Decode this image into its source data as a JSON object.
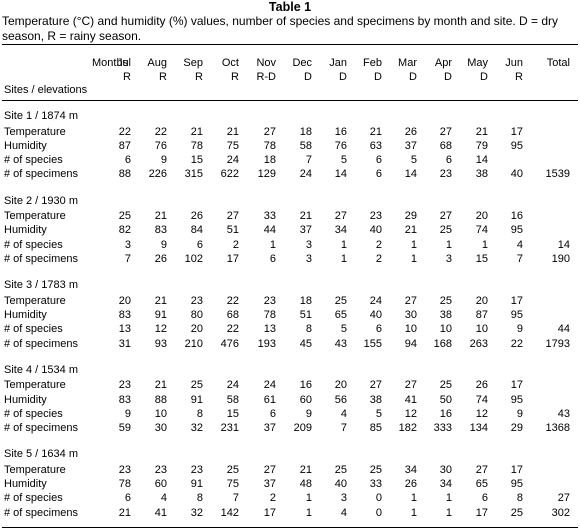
{
  "title": "Table 1",
  "caption": "Temperature (°C) and humidity (%) values, number of species and specimens by month and site. D = dry season, R = rainy season.",
  "header": {
    "months_label": "Months",
    "sites_label": "Sites  /  elevations",
    "columns": [
      {
        "month": "Jul",
        "season": "R"
      },
      {
        "month": "Aug",
        "season": "R"
      },
      {
        "month": "Sep",
        "season": "R"
      },
      {
        "month": "Oct",
        "season": "R"
      },
      {
        "month": "Nov",
        "season": "R-D"
      },
      {
        "month": "Dec",
        "season": "D"
      },
      {
        "month": "Jan",
        "season": "D"
      },
      {
        "month": "Feb",
        "season": "D"
      },
      {
        "month": "Mar",
        "season": "D"
      },
      {
        "month": "Apr",
        "season": "D"
      },
      {
        "month": "May",
        "season": "D"
      },
      {
        "month": "Jun",
        "season": "R"
      },
      {
        "month": "Total",
        "season": ""
      }
    ]
  },
  "sites": [
    {
      "name": "Site 1 / 1874 m",
      "rows": [
        {
          "label": "Temperature",
          "values": [
            "22",
            "22",
            "21",
            "21",
            "27",
            "18",
            "16",
            "21",
            "26",
            "27",
            "21",
            "17",
            ""
          ]
        },
        {
          "label": "Humidity",
          "values": [
            "87",
            "76",
            "78",
            "75",
            "78",
            "58",
            "76",
            "63",
            "37",
            "68",
            "79",
            "95",
            ""
          ]
        },
        {
          "label": "# of species",
          "values": [
            "6",
            "9",
            "15",
            "24",
            "18",
            "7",
            "5",
            "6",
            "5",
            "6",
            "14",
            "",
            ""
          ]
        },
        {
          "label": "# of specimens",
          "values": [
            "88",
            "226",
            "315",
            "622",
            "129",
            "24",
            "14",
            "6",
            "14",
            "23",
            "38",
            "40",
            "1539"
          ]
        }
      ]
    },
    {
      "name": "Site 2 / 1930 m",
      "rows": [
        {
          "label": "Temperature",
          "values": [
            "25",
            "21",
            "26",
            "27",
            "33",
            "21",
            "27",
            "23",
            "29",
            "27",
            "20",
            "16",
            ""
          ]
        },
        {
          "label": "Humidity",
          "values": [
            "82",
            "83",
            "84",
            "51",
            "44",
            "37",
            "34",
            "40",
            "21",
            "25",
            "74",
            "95",
            ""
          ]
        },
        {
          "label": "# of species",
          "values": [
            "3",
            "9",
            "6",
            "2",
            "1",
            "3",
            "1",
            "2",
            "1",
            "1",
            "1",
            "4",
            "14"
          ]
        },
        {
          "label": "# of specimens",
          "values": [
            "7",
            "26",
            "102",
            "17",
            "6",
            "3",
            "1",
            "2",
            "1",
            "3",
            "15",
            "7",
            "190"
          ]
        }
      ]
    },
    {
      "name": "Site 3 / 1783 m",
      "rows": [
        {
          "label": "Temperature",
          "values": [
            "20",
            "21",
            "23",
            "22",
            "23",
            "18",
            "25",
            "24",
            "27",
            "25",
            "20",
            "17",
            ""
          ]
        },
        {
          "label": "Humidity",
          "values": [
            "83",
            "91",
            "80",
            "68",
            "78",
            "51",
            "65",
            "40",
            "30",
            "38",
            "87",
            "95",
            ""
          ]
        },
        {
          "label": "# of species",
          "values": [
            "13",
            "12",
            "20",
            "22",
            "13",
            "8",
            "5",
            "6",
            "10",
            "10",
            "10",
            "9",
            "44"
          ]
        },
        {
          "label": "# of specimens",
          "values": [
            "31",
            "93",
            "210",
            "476",
            "193",
            "45",
            "43",
            "155",
            "94",
            "168",
            "263",
            "22",
            "1793"
          ]
        }
      ]
    },
    {
      "name": "Site 4 / 1534 m",
      "rows": [
        {
          "label": "Temperature",
          "values": [
            "23",
            "21",
            "25",
            "24",
            "24",
            "16",
            "20",
            "27",
            "27",
            "25",
            "26",
            "17",
            ""
          ]
        },
        {
          "label": "Humidity",
          "values": [
            "83",
            "88",
            "91",
            "58",
            "61",
            "60",
            "56",
            "38",
            "41",
            "50",
            "74",
            "95",
            ""
          ]
        },
        {
          "label": "# of species",
          "values": [
            "9",
            "10",
            "8",
            "15",
            "6",
            "9",
            "4",
            "5",
            "12",
            "16",
            "12",
            "9",
            "43"
          ]
        },
        {
          "label": "# of specimens",
          "values": [
            "59",
            "30",
            "32",
            "231",
            "37",
            "209",
            "7",
            "85",
            "182",
            "333",
            "134",
            "29",
            "1368"
          ]
        }
      ]
    },
    {
      "name": "Site 5 / 1634 m",
      "rows": [
        {
          "label": "Temperature",
          "values": [
            "23",
            "23",
            "23",
            "25",
            "27",
            "21",
            "25",
            "25",
            "34",
            "30",
            "27",
            "17",
            ""
          ]
        },
        {
          "label": "Humidity",
          "values": [
            "78",
            "60",
            "91",
            "75",
            "37",
            "48",
            "40",
            "33",
            "26",
            "34",
            "65",
            "95",
            ""
          ]
        },
        {
          "label": "# of species",
          "values": [
            "6",
            "4",
            "8",
            "7",
            "2",
            "1",
            "3",
            "0",
            "1",
            "1",
            "6",
            "8",
            "27"
          ]
        },
        {
          "label": "# of specimens",
          "values": [
            "21",
            "41",
            "32",
            "142",
            "17",
            "1",
            "4",
            "0",
            "1",
            "1",
            "17",
            "25",
            "302"
          ]
        }
      ]
    }
  ]
}
